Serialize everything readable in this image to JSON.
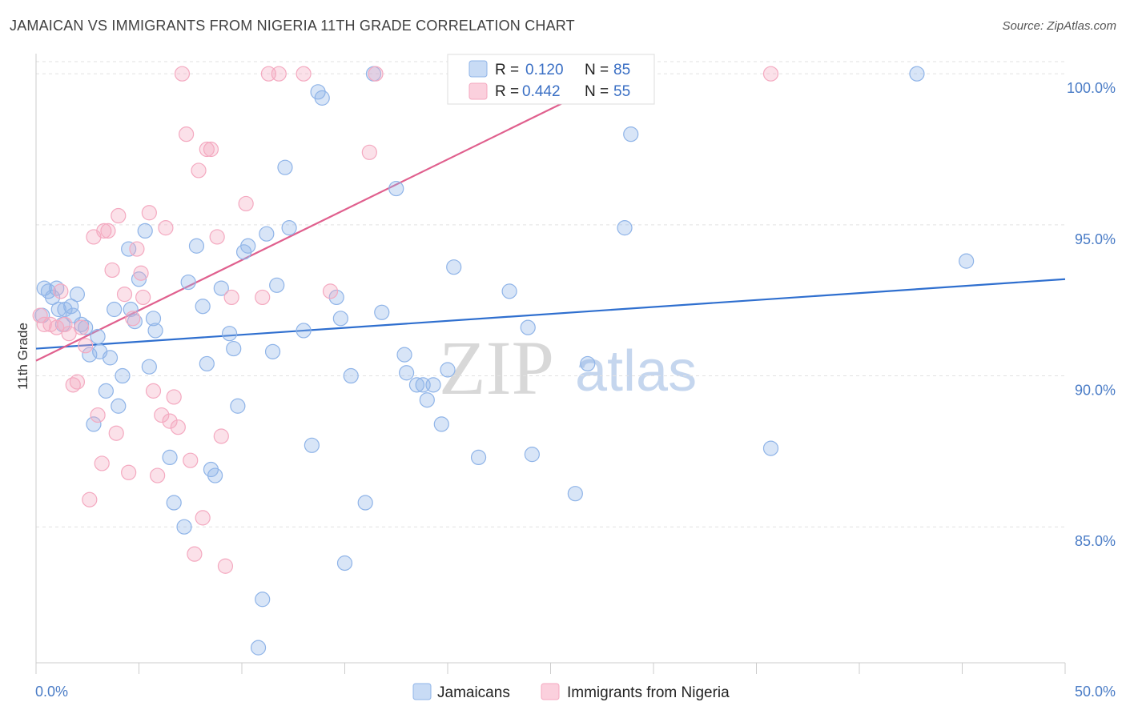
{
  "title": "JAMAICAN VS IMMIGRANTS FROM NIGERIA 11TH GRADE CORRELATION CHART",
  "source": "Source: ZipAtlas.com",
  "watermark": {
    "zip": "ZIP",
    "atlas": "atlas"
  },
  "chart_data": {
    "type": "scatter",
    "xlim": [
      0,
      50
    ],
    "ylim": [
      80.5,
      100.8
    ],
    "ylabel": "11th Grade",
    "x_tick_labels": {
      "left": "0.0%",
      "right": "50.0%"
    },
    "y_ticks": [
      {
        "value": 100,
        "label": "100.0%"
      },
      {
        "value": 95,
        "label": "95.0%"
      },
      {
        "value": 90,
        "label": "90.0%"
      },
      {
        "value": 85,
        "label": "85.0%"
      }
    ],
    "grid": true,
    "legend_position": "top-center",
    "series": [
      {
        "name": "Jamaicans",
        "color": "#8fb4e8",
        "line_color": "#2f6fcf",
        "R": "0.120",
        "N": "85",
        "trend": {
          "x0": 0,
          "y0": 90.9,
          "x1": 50,
          "y1": 93.2
        },
        "points": [
          [
            0.3,
            92.0
          ],
          [
            0.4,
            92.9
          ],
          [
            0.6,
            92.8
          ],
          [
            0.8,
            92.6
          ],
          [
            1.1,
            92.2
          ],
          [
            1.3,
            91.7
          ],
          [
            1.4,
            92.2
          ],
          [
            1.7,
            92.3
          ],
          [
            1.8,
            92.0
          ],
          [
            2.0,
            92.7
          ],
          [
            2.2,
            91.7
          ],
          [
            2.4,
            91.6
          ],
          [
            2.6,
            90.7
          ],
          [
            3.0,
            91.3
          ],
          [
            3.1,
            90.8
          ],
          [
            3.4,
            89.5
          ],
          [
            3.6,
            90.6
          ],
          [
            3.8,
            92.2
          ],
          [
            4.0,
            89.0
          ],
          [
            4.2,
            90.0
          ],
          [
            4.5,
            94.2
          ],
          [
            4.6,
            92.2
          ],
          [
            4.8,
            91.8
          ],
          [
            5.0,
            93.2
          ],
          [
            5.3,
            94.8
          ],
          [
            5.5,
            90.3
          ],
          [
            5.7,
            91.9
          ],
          [
            5.8,
            91.5
          ],
          [
            6.5,
            87.3
          ],
          [
            6.7,
            85.8
          ],
          [
            7.2,
            85.0
          ],
          [
            7.4,
            93.1
          ],
          [
            7.8,
            94.3
          ],
          [
            8.1,
            92.3
          ],
          [
            8.3,
            90.4
          ],
          [
            8.5,
            86.9
          ],
          [
            8.7,
            86.7
          ],
          [
            9.0,
            92.9
          ],
          [
            9.4,
            91.4
          ],
          [
            9.6,
            90.9
          ],
          [
            9.8,
            89.0
          ],
          [
            10.1,
            94.1
          ],
          [
            10.3,
            94.3
          ],
          [
            10.8,
            81.0
          ],
          [
            11.0,
            82.6
          ],
          [
            11.2,
            94.7
          ],
          [
            11.5,
            90.8
          ],
          [
            11.7,
            93.0
          ],
          [
            12.1,
            96.9
          ],
          [
            12.3,
            94.9
          ],
          [
            13.0,
            91.5
          ],
          [
            13.4,
            87.7
          ],
          [
            13.7,
            99.4
          ],
          [
            13.9,
            99.2
          ],
          [
            14.6,
            92.6
          ],
          [
            14.8,
            91.9
          ],
          [
            15.0,
            83.8
          ],
          [
            15.3,
            90.0
          ],
          [
            16.0,
            85.8
          ],
          [
            16.4,
            100.0
          ],
          [
            16.8,
            92.1
          ],
          [
            17.5,
            96.2
          ],
          [
            17.9,
            90.7
          ],
          [
            18.0,
            90.1
          ],
          [
            18.5,
            89.7
          ],
          [
            18.8,
            89.7
          ],
          [
            19.0,
            89.2
          ],
          [
            19.3,
            89.7
          ],
          [
            19.7,
            88.4
          ],
          [
            20.0,
            90.2
          ],
          [
            20.3,
            93.6
          ],
          [
            21.5,
            87.3
          ],
          [
            23.0,
            92.8
          ],
          [
            23.9,
            91.6
          ],
          [
            24.1,
            87.4
          ],
          [
            26.2,
            86.1
          ],
          [
            26.8,
            90.4
          ],
          [
            27.2,
            100.0
          ],
          [
            28.6,
            94.9
          ],
          [
            28.9,
            98.0
          ],
          [
            35.7,
            87.6
          ],
          [
            42.8,
            100.0
          ],
          [
            45.2,
            93.8
          ],
          [
            1.0,
            92.9
          ],
          [
            2.8,
            88.4
          ]
        ]
      },
      {
        "name": "Immigrants from Nigeria",
        "color": "#f4a9c0",
        "line_color": "#e0608e",
        "R": "0.442",
        "N": "55",
        "trend": {
          "x0": 0,
          "y0": 90.5,
          "x1": 28.5,
          "y1": 100.0
        },
        "points": [
          [
            0.2,
            92.0
          ],
          [
            0.4,
            91.7
          ],
          [
            0.7,
            91.7
          ],
          [
            1.0,
            91.6
          ],
          [
            1.2,
            92.8
          ],
          [
            1.4,
            91.7
          ],
          [
            1.6,
            91.4
          ],
          [
            1.8,
            89.7
          ],
          [
            2.0,
            89.8
          ],
          [
            2.2,
            91.6
          ],
          [
            2.4,
            91.0
          ],
          [
            2.6,
            85.9
          ],
          [
            2.8,
            94.6
          ],
          [
            3.0,
            88.7
          ],
          [
            3.2,
            87.1
          ],
          [
            3.3,
            94.8
          ],
          [
            3.5,
            94.8
          ],
          [
            3.7,
            93.5
          ],
          [
            3.9,
            88.1
          ],
          [
            4.0,
            95.3
          ],
          [
            4.3,
            92.7
          ],
          [
            4.5,
            86.8
          ],
          [
            4.7,
            91.9
          ],
          [
            4.9,
            94.2
          ],
          [
            5.1,
            93.4
          ],
          [
            5.2,
            92.6
          ],
          [
            5.5,
            95.4
          ],
          [
            5.7,
            89.5
          ],
          [
            5.9,
            86.7
          ],
          [
            6.1,
            88.7
          ],
          [
            6.3,
            94.9
          ],
          [
            6.5,
            88.5
          ],
          [
            6.7,
            89.3
          ],
          [
            6.9,
            88.3
          ],
          [
            7.1,
            100.0
          ],
          [
            7.3,
            98.0
          ],
          [
            7.5,
            87.2
          ],
          [
            7.7,
            84.1
          ],
          [
            7.9,
            96.8
          ],
          [
            8.1,
            85.3
          ],
          [
            8.3,
            97.5
          ],
          [
            8.5,
            97.5
          ],
          [
            8.8,
            94.6
          ],
          [
            9.0,
            88.0
          ],
          [
            9.2,
            83.7
          ],
          [
            9.5,
            92.6
          ],
          [
            10.2,
            95.7
          ],
          [
            11.0,
            92.6
          ],
          [
            11.3,
            100.0
          ],
          [
            11.8,
            100.0
          ],
          [
            13.0,
            100.0
          ],
          [
            14.3,
            92.8
          ],
          [
            16.2,
            97.4
          ],
          [
            16.5,
            100.0
          ],
          [
            35.7,
            100.0
          ]
        ]
      }
    ]
  },
  "legend": [
    {
      "r_label": "R =",
      "r_value": "0.120",
      "n_label": "N =",
      "n_value": "85"
    },
    {
      "r_label": "R =",
      "r_value": "0.442",
      "n_label": "N =",
      "n_value": "55"
    }
  ],
  "bottom_legend": [
    "Jamaicans",
    "Immigrants from Nigeria"
  ]
}
